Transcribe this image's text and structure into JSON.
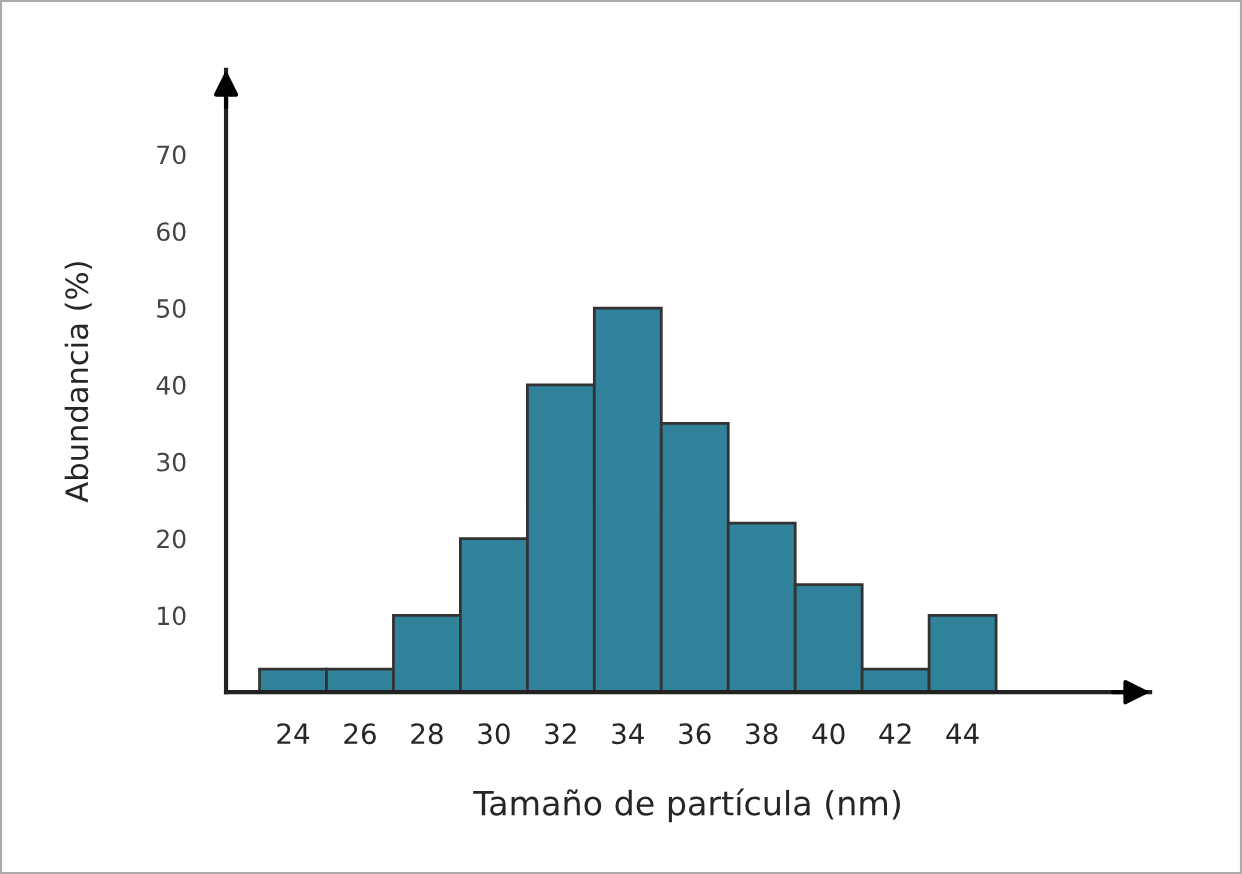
{
  "chart_data": {
    "type": "histogram",
    "xlabel": "Tamaño de partícula (nm)",
    "ylabel": "Abundancia (%)",
    "bins": [
      23,
      25,
      27,
      29,
      31,
      33,
      35,
      37,
      39,
      41,
      43,
      45
    ],
    "values": [
      3,
      3,
      10,
      20,
      40,
      50,
      35,
      22,
      14,
      3,
      10
    ],
    "color": "#31839b",
    "xlim": [
      22,
      49.6
    ],
    "ylim": [
      0,
      81
    ],
    "xticks": [
      24,
      26,
      28,
      30,
      32,
      34,
      36,
      38,
      40,
      42,
      44
    ],
    "yticks": [
      10,
      20,
      30,
      40,
      50,
      60,
      70
    ],
    "grid": false
  }
}
